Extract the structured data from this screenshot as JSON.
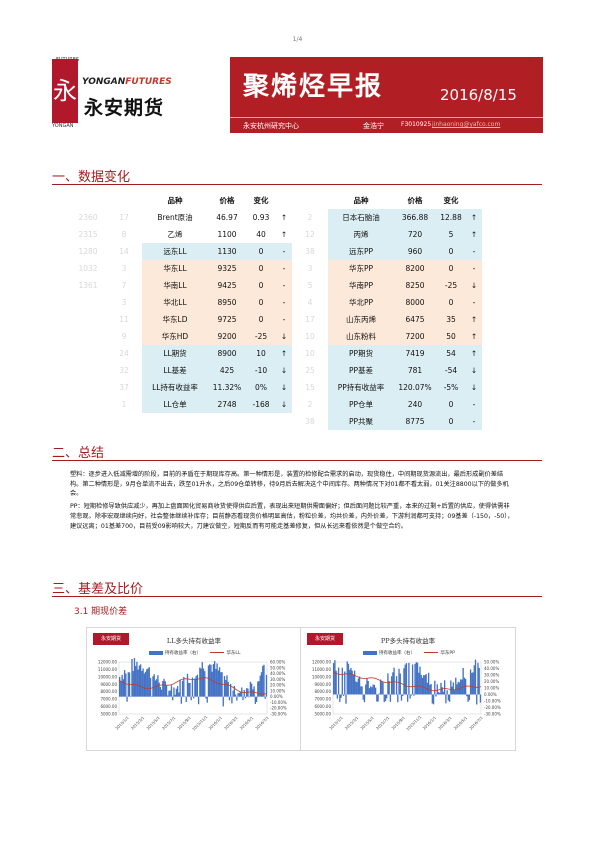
{
  "page": {
    "number": "1/4"
  },
  "header": {
    "logo_en_a": "YONGAN",
    "logo_en_b": "FUTURES",
    "logo_cn": "永安期货",
    "logo_mark": "永",
    "logo_small_top": "FUTURES",
    "logo_small_bottom": "YONGAN",
    "title": "聚烯烃早报",
    "date": "2016/8/15",
    "org": "永安杭州研究中心",
    "author": "金浩宁",
    "cert": "F3010925",
    "email": "jinhaoning@yafco.com"
  },
  "sections": {
    "data": "一、数据变化",
    "summary": "二、总结",
    "basis": "三、基差及比价",
    "basis_sub": "3.1 期现价差"
  },
  "table": {
    "headers": [
      "品种",
      "价格",
      "变化",
      "品种",
      "价格",
      "变化"
    ],
    "rows": [
      {
        "g1": "2360",
        "g2": "17",
        "n1": "Brent原油",
        "p1": "46.97",
        "c1": "0.93",
        "a1": "↑",
        "c1bg": "",
        "g3": "2",
        "n2": "日本石脑油",
        "p2": "366.88",
        "c2": "12.88",
        "a2": "↑",
        "c2bg": "blue"
      },
      {
        "g1": "2315",
        "g2": "8",
        "n1": "乙烯",
        "p1": "1100",
        "c1": "40",
        "a1": "↑",
        "c1bg": "",
        "g3": "12",
        "n2": "丙烯",
        "p2": "720",
        "c2": "5",
        "a2": "↑",
        "c2bg": "blue"
      },
      {
        "g1": "1280",
        "g2": "14",
        "n1": "远东LL",
        "p1": "1130",
        "c1": "0",
        "a1": "-",
        "c1bg": "blue",
        "g3": "38",
        "n2": "远东PP",
        "p2": "960",
        "c2": "0",
        "a2": "-",
        "c2bg": "blue"
      },
      {
        "g1": "1032",
        "g2": "3",
        "n1": "华东LL",
        "p1": "9325",
        "c1": "0",
        "a1": "-",
        "c1bg": "peach",
        "g3": "3",
        "n2": "华东PP",
        "p2": "8200",
        "c2": "0",
        "a2": "-",
        "c2bg": "peach"
      },
      {
        "g1": "1361",
        "g2": "7",
        "n1": "华南LL",
        "p1": "9425",
        "c1": "0",
        "a1": "-",
        "c1bg": "peach",
        "g3": "5",
        "n2": "华南PP",
        "p2": "8250",
        "c2": "-25",
        "a2": "↓",
        "c2bg": "peach"
      },
      {
        "g1": "",
        "g2": "3",
        "n1": "华北LL",
        "p1": "8950",
        "c1": "0",
        "a1": "-",
        "c1bg": "peach",
        "g3": "4",
        "n2": "华北PP",
        "p2": "8000",
        "c2": "0",
        "a2": "-",
        "c2bg": "peach"
      },
      {
        "g1": "",
        "g2": "11",
        "n1": "华东LD",
        "p1": "9725",
        "c1": "0",
        "a1": "-",
        "c1bg": "peach",
        "g3": "17",
        "n2": "山东丙烯",
        "p2": "6475",
        "c2": "35",
        "a2": "↑",
        "c2bg": "peach"
      },
      {
        "g1": "",
        "g2": "9",
        "n1": "华东HD",
        "p1": "9200",
        "c1": "-25",
        "a1": "↓",
        "c1bg": "peach",
        "g3": "10",
        "n2": "山东粉料",
        "p2": "7200",
        "c2": "50",
        "a2": "↑",
        "c2bg": "peach"
      },
      {
        "g1": "",
        "g2": "24",
        "n1": "LL期货",
        "p1": "8900",
        "c1": "10",
        "a1": "↑",
        "c1bg": "blue",
        "g3": "10",
        "n2": "PP期货",
        "p2": "7419",
        "c2": "54",
        "a2": "↑",
        "c2bg": "blue"
      },
      {
        "g1": "",
        "g2": "32",
        "n1": "LL基差",
        "p1": "425",
        "c1": "-10",
        "a1": "↓",
        "c1bg": "blue",
        "g3": "25",
        "n2": "PP基差",
        "p2": "781",
        "c2": "-54",
        "a2": "↓",
        "c2bg": "blue"
      },
      {
        "g1": "",
        "g2": "37",
        "n1": "LL持有收益率",
        "p1": "11.32%",
        "c1": "0%",
        "a1": "↓",
        "c1bg": "blue",
        "g3": "15",
        "n2": "PP持有收益率",
        "p2": "120.07%",
        "c2": "-5%",
        "a2": "↓",
        "c2bg": "blue"
      },
      {
        "g1": "",
        "g2": "1",
        "n1": "LL仓单",
        "p1": "2748",
        "c1": "-168",
        "a1": "↓",
        "c1bg": "blue",
        "g3": "2",
        "n2": "PP仓单",
        "p2": "240",
        "c2": "0",
        "a2": "-",
        "c2bg": "blue"
      },
      {
        "g1": "",
        "g2": "",
        "n1": "",
        "p1": "",
        "c1": "",
        "a1": "",
        "c1bg": "",
        "g3": "38",
        "n2": "PP共聚",
        "p2": "8775",
        "c2": "0",
        "a2": "-",
        "c2bg": "blue"
      }
    ]
  },
  "summary": {
    "p1": "塑料：逐步进入低减需增的阶段，目前的矛盾在于期现库存高。第一种情形是，装置的检修配合需求的启动，现货稳住，中间期现货源流出，最后形成副价差结构。第二种情形是，9月仓单流不出去，跌至01升水，之后09仓单转移，待9月后去解决这个中间库存。两种情况下对01都不看太弱，01关注8800以下的做多机会。",
    "p2": "PP：短期检修导致供应减少，再加上盘面固化贸易商收货使得供应后置，表现出来短期供需面偏好；但后面问题比较严重，本来的过剩+后置的供应，使得供需非常悲观，除非宏观继续向好，社会整体继续补库存；目前静态看现货价格明显高估，粉粒价差，均共价差，内外价差，下游利润都可支持；09基差（-150，-50），建议远离；01基差700，目前受09影响较大，刀建议做空，短期反而有可能走基差修复，但从长远来看依然是个做空合约。"
  },
  "charts": [
    {
      "title": "LL多头持有收益率",
      "logo": "永安期货",
      "legend_a": "持有收益率（右）",
      "legend_b": "华东LL",
      "y_left": [
        "12000.00",
        "11000.00",
        "10000.00",
        "9000.00",
        "8000.00",
        "7000.00",
        "6000.00",
        "5000.00"
      ],
      "y_right": [
        "60.00%",
        "50.00%",
        "40.00%",
        "30.00%",
        "20.00%",
        "10.00%",
        "0.00%",
        "-10.00%",
        "-20.00%",
        "-30.00%"
      ],
      "x_labels": [
        "2015/1/1",
        "2015/3/1",
        "2015/5/1",
        "2015/7/1",
        "2015/9/1",
        "2015/11/1",
        "2016/1/1",
        "2016/3/1",
        "2016/5/1",
        "2016/7/1"
      ]
    },
    {
      "title": "PP多头持有收益率",
      "logo": "永安期货",
      "legend_a": "持有收益率（右）",
      "legend_b": "华东PP",
      "y_left": [
        "12000.00",
        "11000.00",
        "10000.00",
        "9000.00",
        "8000.00",
        "7000.00",
        "6000.00",
        "5000.00"
      ],
      "y_right": [
        "50.00%",
        "40.00%",
        "30.00%",
        "20.00%",
        "10.00%",
        "0.00%",
        "-10.00%",
        "-20.00%",
        "-30.00%"
      ],
      "x_labels": [
        "2015/1/1",
        "2015/3/1",
        "2015/5/1",
        "2015/7/1",
        "2015/9/1",
        "2015/11/1",
        "2016/1/1",
        "2016/3/1",
        "2016/5/1",
        "2016/7/1"
      ]
    }
  ]
}
